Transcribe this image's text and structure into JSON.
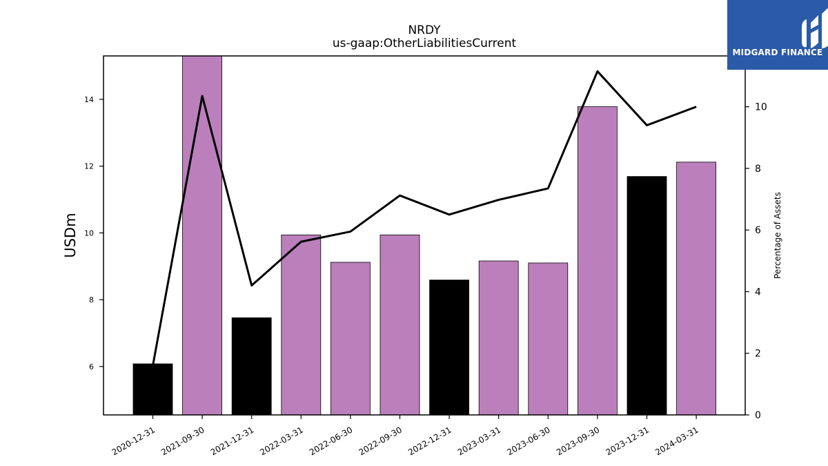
{
  "logo": {
    "text": "MIDGARD FINANCE",
    "icon": "midgard-logo-icon",
    "background": "#2b5aa8"
  },
  "chart_data": {
    "type": "bar",
    "title": "NRDY",
    "subtitle": "us-gaap:OtherLiabilitiesCurrent",
    "ylabel": "USDm",
    "y2label": "Percentage of Assets",
    "ylim": [
      4.55,
      15.3
    ],
    "y2lim": [
      0,
      11.65
    ],
    "yticks": [
      6,
      8,
      10,
      12,
      14
    ],
    "y2ticks": [
      0,
      2,
      4,
      6,
      8,
      10
    ],
    "categories": [
      "2020-12-31",
      "2021-09-30",
      "2021-12-31",
      "2022-03-31",
      "2022-06-30",
      "2022-09-30",
      "2022-12-31",
      "2023-03-31",
      "2023-06-30",
      "2023-09-30",
      "2023-12-31",
      "2024-03-31"
    ],
    "bars": {
      "values": [
        6.08,
        15.4,
        7.46,
        9.94,
        9.12,
        9.94,
        8.59,
        9.16,
        9.1,
        13.78,
        11.69,
        12.12
      ],
      "colors": [
        "#000000",
        "#bb7fbb",
        "#000000",
        "#bb7fbb",
        "#bb7fbb",
        "#bb7fbb",
        "#000000",
        "#bb7fbb",
        "#bb7fbb",
        "#bb7fbb",
        "#000000",
        "#bb7fbb"
      ]
    },
    "line": {
      "values": [
        1.6,
        10.35,
        4.2,
        5.62,
        5.95,
        7.12,
        6.5,
        6.98,
        7.35,
        11.15,
        9.4,
        10.0
      ],
      "color": "#000000",
      "axis": "right"
    },
    "grid": false
  }
}
